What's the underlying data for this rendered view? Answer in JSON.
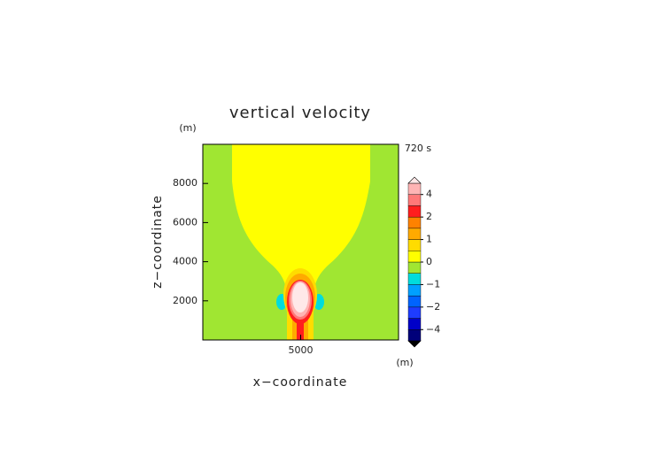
{
  "chart_data": {
    "type": "contour",
    "title": "vertical velocity",
    "time_label": "720 s",
    "x_label": "x−coordinate",
    "y_label": "z−coordinate",
    "x_unit": "(m)",
    "y_unit": "(m)",
    "xlim": [
      0,
      10000
    ],
    "ylim": [
      0,
      10000
    ],
    "xticks": [
      5000
    ],
    "yticks": [
      2000,
      4000,
      6000,
      8000
    ],
    "colorbar": {
      "levels": [
        -5,
        -4,
        -3,
        -2,
        -1.5,
        -1,
        -0.5,
        0,
        0.5,
        1,
        1.5,
        2,
        3,
        4,
        5
      ],
      "colors": [
        "#00007a",
        "#0000c8",
        "#1e3cff",
        "#0064ff",
        "#00a0ff",
        "#00dcdc",
        "#a0e632",
        "#ffff00",
        "#ffdc00",
        "#ffaa00",
        "#ff8200",
        "#ff1e1e",
        "#ff7878",
        "#ffb4b4"
      ],
      "over_color": "#ffe8e8",
      "under_color": "#000000",
      "ticks": [
        {
          "value": -4,
          "label": "−4"
        },
        {
          "value": -2,
          "label": "−2"
        },
        {
          "value": -1,
          "label": "−1"
        },
        0,
        1,
        2,
        4
      ]
    }
  }
}
